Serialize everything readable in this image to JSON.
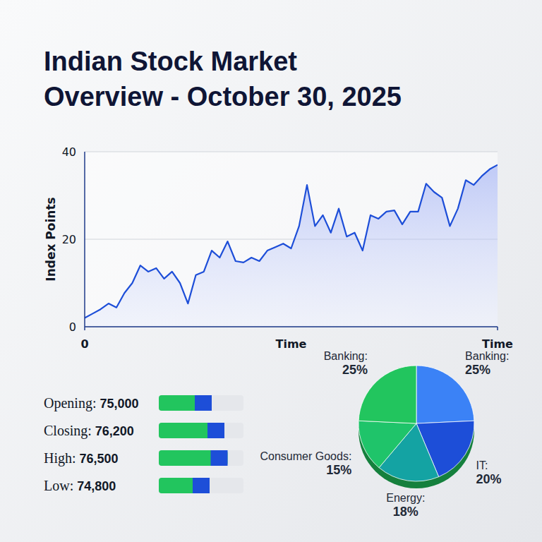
{
  "chart_data": [
    {
      "type": "line",
      "title": "Indian Stock Market Overview - October 30, 2025",
      "x_label": "Time",
      "y_label": "Index Points",
      "x": [
        0,
        1,
        2,
        3,
        4,
        5,
        6,
        7,
        8,
        9,
        10,
        11,
        12,
        13,
        14,
        15,
        16,
        17,
        18,
        19,
        20,
        21,
        22,
        23,
        24,
        25,
        26,
        27,
        28,
        29,
        30,
        31,
        32,
        33,
        34,
        35,
        36,
        37,
        38,
        39,
        40,
        41,
        42,
        43,
        44,
        45,
        46,
        47,
        48,
        49,
        50,
        51,
        52
      ],
      "values": [
        2,
        3,
        4,
        5.3,
        4.4,
        7.7,
        10,
        14,
        12.6,
        13.4,
        11,
        12.6,
        10,
        5.3,
        11.8,
        12.6,
        17.4,
        15.8,
        19.5,
        15,
        14.7,
        15.8,
        15,
        17.4,
        18.2,
        19,
        17.9,
        23,
        32.4,
        23,
        25.5,
        21.5,
        27,
        20.6,
        21.5,
        17.4,
        25.5,
        24.7,
        26.3,
        26.6,
        23.4,
        26.3,
        26.3,
        32.7,
        30.8,
        29.5,
        23,
        27,
        33.5,
        32.4,
        34.4,
        36,
        37
      ],
      "color": "#1d4ed8",
      "xlim": [
        0,
        52
      ],
      "xticks": [
        0,
        {
          "value": 52,
          "label": "Time"
        }
      ],
      "ylim": [
        0,
        40
      ],
      "yticks": [
        0,
        20,
        40
      ],
      "grid": true
    },
    {
      "type": "bar",
      "orientation": "horizontal",
      "categories": [
        "Opening:",
        "Closing:",
        "High:",
        "Low:"
      ],
      "values": [
        75000,
        76200,
        76500,
        74800
      ],
      "value_labels": [
        "75,000",
        "76,200",
        "76,500",
        "74,800"
      ],
      "data_labels": true,
      "color": "#22c55e",
      "xlim": [
        70000,
        78000
      ],
      "tick_labels": false
    },
    {
      "type": "pie",
      "categories": [
        "Banking:",
        "IT:",
        "Energy:",
        "Consumer Goods:",
        "Banking:"
      ],
      "values": [
        25,
        20,
        18,
        15,
        25
      ],
      "value_labels": [
        "25%",
        "20%",
        "18%",
        "15%",
        "25%"
      ],
      "data_labels": true,
      "colors": [
        "#3b82f6",
        "#1d4ed8",
        "#14a3a3",
        "#1fc46a",
        "#22c55e"
      ]
    }
  ]
}
